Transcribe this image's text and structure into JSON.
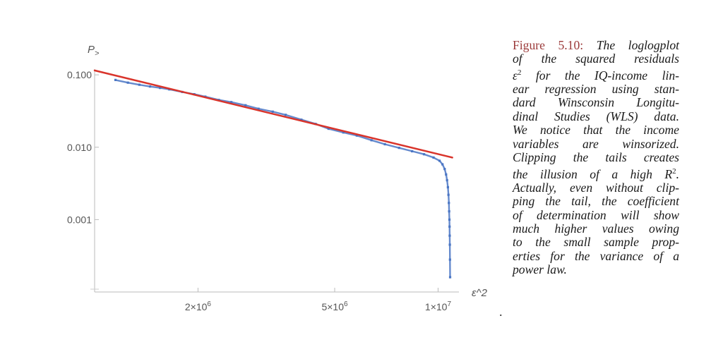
{
  "chart_data": {
    "type": "scatter",
    "title": "",
    "xlabel": "ε^2",
    "ylabel": "P>",
    "xscale": "log",
    "yscale": "log",
    "xlim": [
      1000000,
      11500000
    ],
    "ylim": [
      0.0001,
      0.12
    ],
    "xticks": [
      {
        "value": 2000000,
        "label_base": "2×10",
        "label_exp": "6"
      },
      {
        "value": 5000000,
        "label_base": "5×10",
        "label_exp": "6"
      },
      {
        "value": 10000000,
        "label_base": "1×10",
        "label_exp": "7"
      }
    ],
    "yticks": [
      {
        "value": 0.1,
        "label": "0.100"
      },
      {
        "value": 0.01,
        "label": "0.010"
      },
      {
        "value": 0.001,
        "label": "0.001"
      }
    ],
    "fit_line": {
      "x": [
        1000000,
        11000000
      ],
      "y": [
        0.115,
        0.0072
      ],
      "color": "#d9342b"
    },
    "series": [
      {
        "color": "#4a76c4",
        "points": [
          [
            1150000,
            0.085
          ],
          [
            1250000,
            0.078
          ],
          [
            1350000,
            0.073
          ],
          [
            1450000,
            0.069
          ],
          [
            1550000,
            0.066
          ],
          [
            1650000,
            0.063
          ],
          [
            1800000,
            0.058
          ],
          [
            1950000,
            0.054
          ],
          [
            2100000,
            0.05
          ],
          [
            2300000,
            0.045
          ],
          [
            2500000,
            0.042
          ],
          [
            2750000,
            0.038
          ],
          [
            3000000,
            0.034
          ],
          [
            3300000,
            0.031
          ],
          [
            3600000,
            0.028
          ],
          [
            4000000,
            0.024
          ],
          [
            4400000,
            0.021
          ],
          [
            4800000,
            0.018
          ],
          [
            5300000,
            0.016
          ],
          [
            5800000,
            0.0145
          ],
          [
            6400000,
            0.0125
          ],
          [
            7000000,
            0.011
          ],
          [
            7700000,
            0.0098
          ],
          [
            8400000,
            0.0088
          ],
          [
            9100000,
            0.008
          ],
          [
            9700000,
            0.0072
          ],
          [
            10100000,
            0.0065
          ],
          [
            10300000,
            0.0058
          ],
          [
            10450000,
            0.005
          ],
          [
            10550000,
            0.0042
          ],
          [
            10620000,
            0.0035
          ],
          [
            10680000,
            0.0028
          ],
          [
            10720000,
            0.0022
          ],
          [
            10750000,
            0.0017
          ],
          [
            10770000,
            0.0013
          ],
          [
            10790000,
            0.001
          ],
          [
            10800000,
            0.0008
          ],
          [
            10810000,
            0.0006
          ],
          [
            10820000,
            0.00045
          ],
          [
            10830000,
            0.00028
          ],
          [
            10840000,
            0.00016
          ]
        ]
      }
    ],
    "grid": false,
    "legend": "none"
  },
  "caption": {
    "label": "Figure 5.10:",
    "line1": "The loglogplot",
    "lines": [
      "of the squared residuals",
      "ε2 for the IQ-income lin-",
      "ear regression using stan-",
      "dard Winsconsin Longitu-",
      "dinal Studies (WLS) data.",
      "We notice that the income",
      "variables are winsorized.",
      "Clipping the tails creates",
      "the illusion of a high R2.",
      "Actually, even without clip-",
      "ping the tail, the coefficient",
      "of determination will show",
      "much higher values owing",
      "to the small sample prop-",
      "erties for the variance of a",
      "power law."
    ]
  },
  "stray_mark": "."
}
